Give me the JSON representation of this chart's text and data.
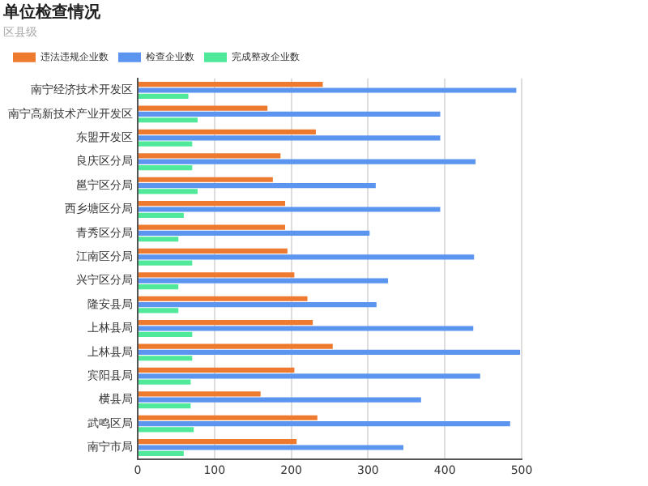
{
  "chart_data": {
    "type": "bar",
    "orientation": "horizontal",
    "title": "单位检查情况",
    "subtitle": "区县级",
    "categories": [
      "南宁经济技术开发区",
      "南宁高新技术产业开发区",
      "东盟开发区",
      "良庆区分局",
      "邕宁区分局",
      "西乡塘区分局",
      "青秀区分局",
      "江南区分局",
      "兴宁区分局",
      "隆安县局",
      "上林县局",
      "上林县局",
      "宾阳县局",
      "横县局",
      "武鸣区局",
      "南宁市局"
    ],
    "series": [
      {
        "name": "违法违规企业数",
        "color": "#ee7a30",
        "values": [
          241,
          169,
          232,
          186,
          176,
          192,
          192,
          195,
          204,
          221,
          228,
          254,
          204,
          160,
          234,
          207
        ]
      },
      {
        "name": "检查企业数",
        "color": "#5b95f0",
        "values": [
          493,
          394,
          394,
          440,
          310,
          394,
          302,
          438,
          326,
          311,
          437,
          498,
          446,
          369,
          485,
          346
        ]
      },
      {
        "name": "完成整改企业数",
        "color": "#50e89a",
        "values": [
          66,
          78,
          71,
          71,
          78,
          60,
          53,
          71,
          53,
          53,
          71,
          71,
          69,
          69,
          73,
          60
        ]
      }
    ],
    "xlim": [
      0,
      500
    ],
    "xticks": [
      0,
      100,
      200,
      300,
      400,
      500
    ],
    "grid": "x",
    "legend": "top left"
  }
}
